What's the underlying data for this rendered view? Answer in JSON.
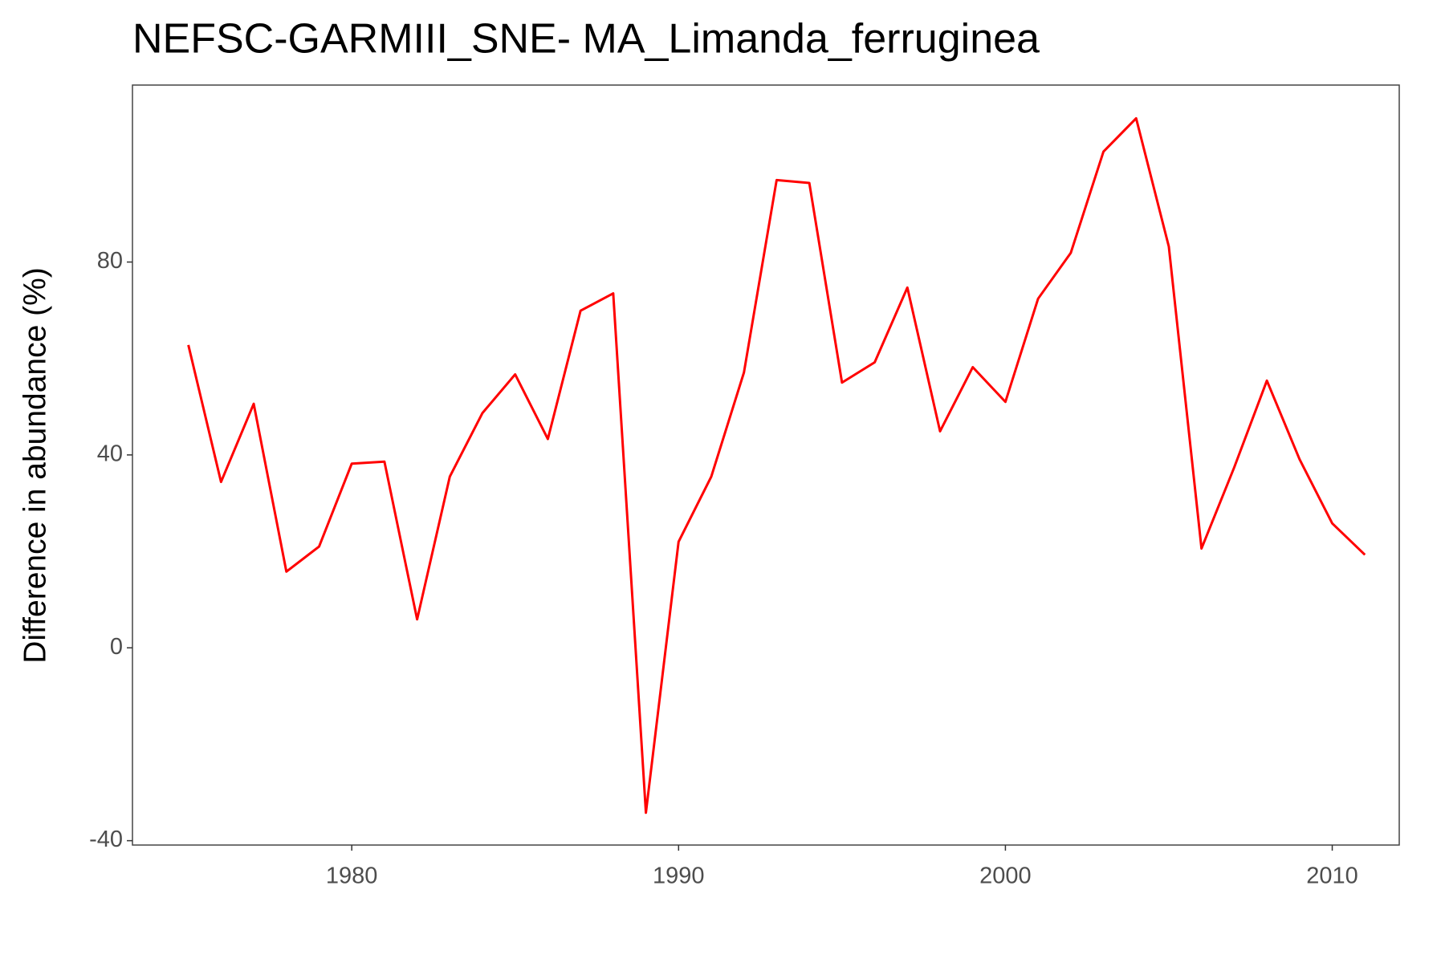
{
  "chart_data": {
    "type": "line",
    "title": "NEFSC-GARMIII_SNE- MA_Limanda_ferruginea",
    "y_label": "Difference in abundance (%)",
    "x": [
      1975,
      1976,
      1977,
      1978,
      1979,
      1980,
      1981,
      1982,
      1983,
      1984,
      1985,
      1986,
      1987,
      1988,
      1989,
      1990,
      1991,
      1992,
      1993,
      1994,
      1995,
      1996,
      1997,
      1998,
      1999,
      2000,
      2001,
      2002,
      2003,
      2004,
      2005,
      2006,
      2007,
      2008,
      2009,
      2010,
      2011
    ],
    "series": [
      {
        "name": "Difference in abundance",
        "color": "#ff0000",
        "values": [
          62.8,
          34.4,
          50.6,
          15.8,
          21.0,
          38.2,
          38.6,
          5.9,
          35.5,
          48.7,
          56.7,
          43.3,
          69.9,
          73.5,
          -34.2,
          22.0,
          35.5,
          57.1,
          97.0,
          96.4,
          55.0,
          59.2,
          74.7,
          44.9,
          58.2,
          51.0,
          72.4,
          81.9,
          102.9,
          109.8,
          83.2,
          20.6,
          37.4,
          55.4,
          39.1,
          25.8,
          19.3
        ]
      }
    ],
    "xlim": [
      1973.29,
      2012.05
    ],
    "xticks": [
      1980,
      1990,
      2000,
      2010
    ],
    "ylim": [
      -40.9,
      116.7
    ],
    "yticks": [
      -40,
      0,
      40,
      80
    ],
    "grid": false
  }
}
